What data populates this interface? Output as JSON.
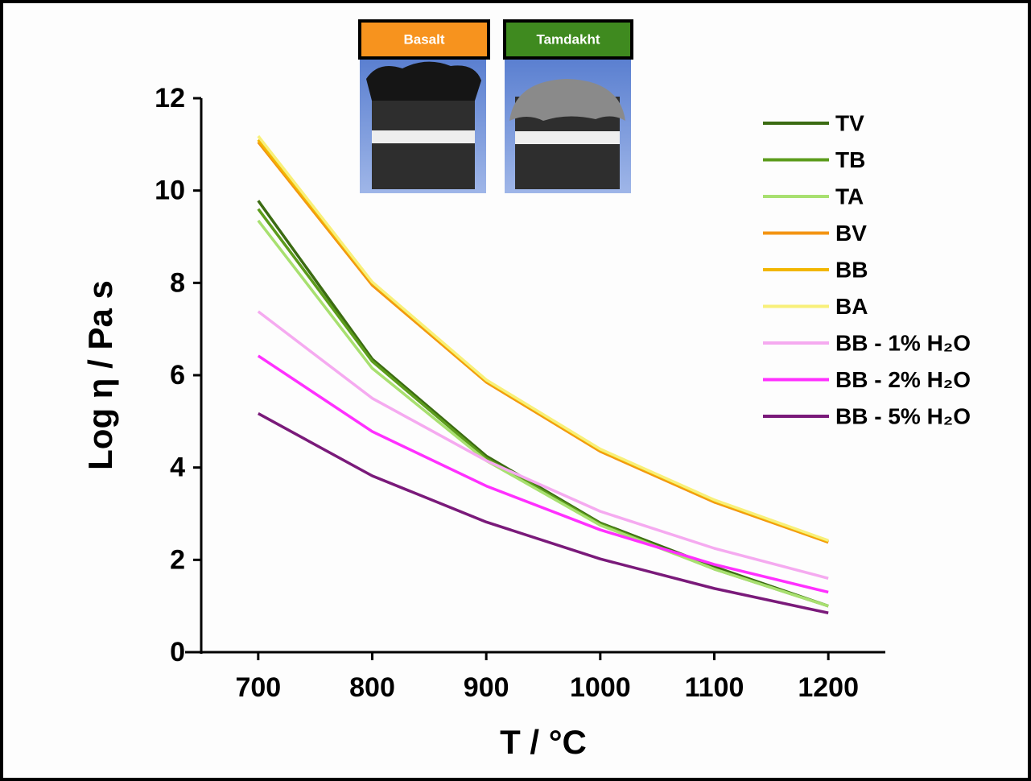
{
  "chart_data": {
    "type": "line",
    "x_label": "T / °C",
    "y_label": "Log η / Pa s",
    "x": [
      700,
      800,
      900,
      1000,
      1100,
      1200
    ],
    "xlim": [
      650,
      1250
    ],
    "xticks": [
      700,
      800,
      900,
      1000,
      1100,
      1200
    ],
    "ylim": [
      0,
      12
    ],
    "yticks": [
      0,
      2,
      4,
      6,
      8,
      10,
      12
    ],
    "legend": "upper right",
    "annotations": [
      {
        "text": "Basalt",
        "color": "#f7931e"
      },
      {
        "text": "Tamdakht",
        "color": "#3f8a1f"
      }
    ],
    "series": [
      {
        "name": "TV",
        "color": "#3b6b12",
        "values": [
          9.78,
          6.35,
          4.25,
          2.8,
          1.85,
          1.0
        ]
      },
      {
        "name": "TB",
        "color": "#5c9c1c",
        "values": [
          9.6,
          6.3,
          4.2,
          2.78,
          1.8,
          1.0
        ]
      },
      {
        "name": "TA",
        "color": "#a8e070",
        "values": [
          9.35,
          6.15,
          4.15,
          2.75,
          1.8,
          1.0
        ]
      },
      {
        "name": "BV",
        "color": "#f39412",
        "values": [
          11.05,
          7.95,
          5.85,
          4.35,
          3.25,
          2.38
        ]
      },
      {
        "name": "BB",
        "color": "#f2b600",
        "values": [
          11.1,
          8.0,
          5.88,
          4.38,
          3.28,
          2.4
        ]
      },
      {
        "name": "BA",
        "color": "#f8f07a",
        "values": [
          11.18,
          8.02,
          5.9,
          4.4,
          3.3,
          2.42
        ]
      },
      {
        "name": "BB - 1% H₂O",
        "color": "#f5aaf0",
        "values": [
          7.38,
          5.5,
          4.15,
          3.05,
          2.25,
          1.6
        ]
      },
      {
        "name": "BB - 2% H₂O",
        "color": "#ff30ff",
        "values": [
          6.42,
          4.78,
          3.6,
          2.65,
          1.9,
          1.3
        ]
      },
      {
        "name": "BB - 5% H₂O",
        "color": "#7a1a7a",
        "values": [
          5.17,
          3.82,
          2.82,
          2.02,
          1.38,
          0.85
        ]
      }
    ]
  }
}
